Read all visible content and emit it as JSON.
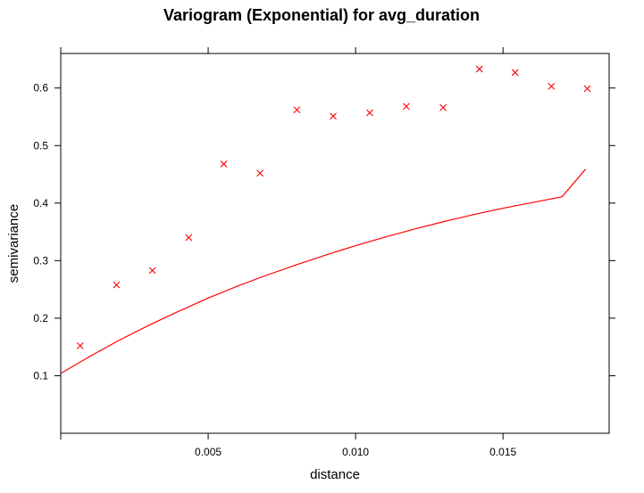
{
  "chart_data": {
    "type": "scatter",
    "title": "Variogram (Exponential) for avg_duration",
    "xlabel": "distance",
    "ylabel": "semivariance",
    "xlim": [
      0.0,
      0.0186
    ],
    "ylim": [
      0.0,
      0.66
    ],
    "x_ticks": [
      0.005,
      0.01,
      0.015
    ],
    "x_tick_labels": [
      "0.005",
      "0.010",
      "0.015"
    ],
    "y_ticks": [
      0.1,
      0.2,
      0.3,
      0.4,
      0.5,
      0.6
    ],
    "y_tick_labels": [
      "0.1",
      "0.2",
      "0.3",
      "0.4",
      "0.5",
      "0.6"
    ],
    "grid": false,
    "marker_color": "#ff0000",
    "line_color": "#ff0000",
    "series": [
      {
        "kind": "points",
        "marker": "x",
        "x": [
          0.00066,
          0.00189,
          0.00311,
          0.00434,
          0.00553,
          0.00676,
          0.00801,
          0.00924,
          0.01048,
          0.01172,
          0.01297,
          0.0142,
          0.01541,
          0.01664,
          0.01786
        ],
        "y": [
          0.152,
          0.258,
          0.283,
          0.34,
          0.468,
          0.452,
          0.562,
          0.551,
          0.557,
          0.568,
          0.566,
          0.633,
          0.627,
          0.603,
          0.599
        ]
      },
      {
        "kind": "fitted-curve",
        "model": "exponential",
        "x": [
          0.0,
          0.001,
          0.002,
          0.003,
          0.004,
          0.005,
          0.006,
          0.007,
          0.008,
          0.009,
          0.01,
          0.011,
          0.012,
          0.013,
          0.014,
          0.015,
          0.016,
          0.017,
          0.0178
        ],
        "y": [
          0.104,
          0.134,
          0.162,
          0.188,
          0.212,
          0.235,
          0.256,
          0.275,
          0.293,
          0.31,
          0.326,
          0.341,
          0.355,
          0.368,
          0.38,
          0.391,
          0.401,
          0.411,
          0.459
        ]
      }
    ]
  }
}
